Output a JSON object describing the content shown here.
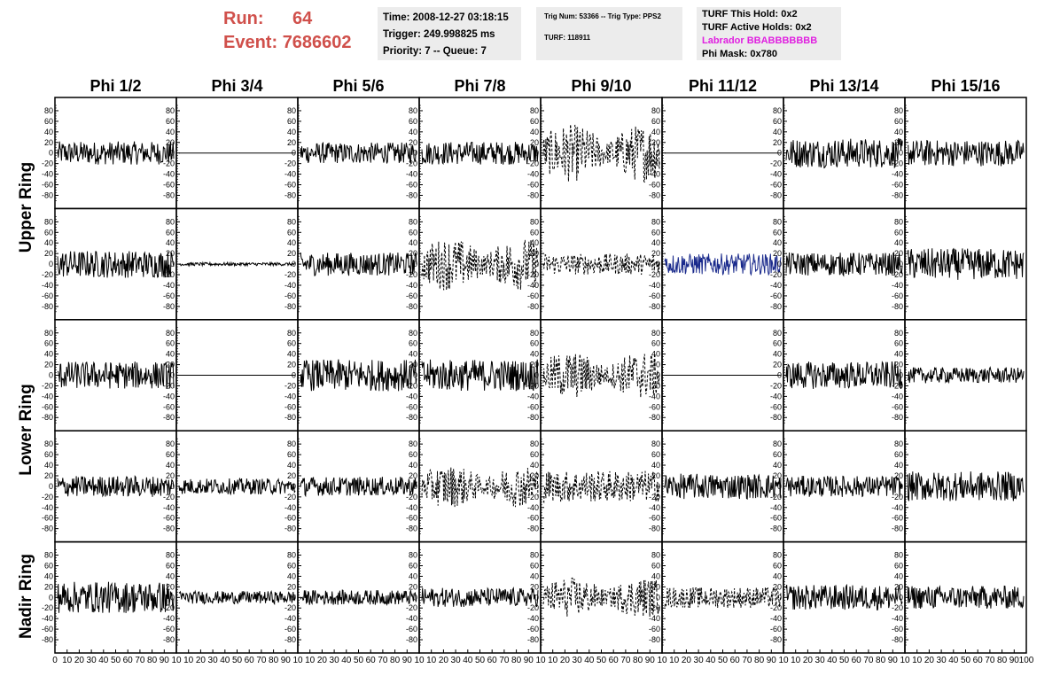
{
  "header": {
    "run_label": "Run:",
    "run_value": "64",
    "event_label": "Event:",
    "event_value": "7686602",
    "time": "Time: 2008-12-27 03:18:15",
    "trigger": "Trigger: 249.998825 ms",
    "priority": "Priority: 7 -- Queue: 7",
    "trig_num": "Trig Num: 53366 -- Trig Type: PPS2",
    "turf": "TURF: 118911",
    "turf_hold": "TURF This Hold: 0x2",
    "turf_active": "TURF Active Holds: 0x2",
    "labrador": "Labrador BBABBBBBBB",
    "phi_mask": "Phi Mask: 0x780"
  },
  "colors": {
    "run_text": "#d0504b",
    "labrador_text": "#e020e0",
    "info_bg": "#ececec",
    "trace_default": "#000000",
    "trace_blue": "#1a2a8c"
  },
  "chart_data": {
    "type": "line",
    "title": "",
    "columns": [
      "Phi 1/2",
      "Phi 3/4",
      "Phi 5/6",
      "Phi 7/8",
      "Phi 9/10",
      "Phi 11/12",
      "Phi 13/14",
      "Phi 15/16"
    ],
    "row_labels": [
      "Upper Ring",
      "Lower Ring",
      "Nadir Ring"
    ],
    "rows_per_panel": 5,
    "xlim": [
      0,
      100
    ],
    "ylim": [
      -95,
      95
    ],
    "y_ticks": [
      -80,
      -60,
      -40,
      -20,
      0,
      20,
      40,
      60,
      80
    ],
    "x_ticks": [
      0,
      10,
      20,
      30,
      40,
      50,
      60,
      70,
      80,
      90,
      100
    ],
    "x_tick_labels_first": [
      "0",
      "10",
      "20",
      "30",
      "40",
      "50",
      "60",
      "70",
      "80",
      "90",
      "10"
    ],
    "x_tick_labels_mid": [
      "10",
      "20",
      "30",
      "40",
      "50",
      "60",
      "70",
      "80",
      "90",
      "10"
    ],
    "x_tick_labels_last": [
      "10",
      "20",
      "30",
      "40",
      "50",
      "60",
      "70",
      "80",
      "90",
      "100"
    ],
    "panels": [
      [
        {
          "style": "noise",
          "amp": 22
        },
        {
          "style": "flat",
          "amp": 0
        },
        {
          "style": "noise",
          "amp": 20
        },
        {
          "style": "noise",
          "amp": 22
        },
        {
          "style": "burst",
          "amp": 55,
          "dashed": true
        },
        {
          "style": "flat",
          "amp": 0
        },
        {
          "style": "noise",
          "amp": 28
        },
        {
          "style": "noise",
          "amp": 25
        }
      ],
      [
        {
          "style": "noise",
          "amp": 26
        },
        {
          "style": "small",
          "amp": 3
        },
        {
          "style": "noise",
          "amp": 22
        },
        {
          "style": "burst",
          "amp": 50,
          "dashed": true
        },
        {
          "style": "noise",
          "amp": 20,
          "dashed": true
        },
        {
          "style": "noise",
          "amp": 20,
          "color": "blue"
        },
        {
          "style": "noise",
          "amp": 22
        },
        {
          "style": "noise",
          "amp": 30
        }
      ],
      [
        {
          "style": "noise",
          "amp": 26
        },
        {
          "style": "flat",
          "amp": 0
        },
        {
          "style": "noise",
          "amp": 30
        },
        {
          "style": "noise",
          "amp": 30
        },
        {
          "style": "burst",
          "amp": 45,
          "dashed": true
        },
        {
          "style": "flat",
          "amp": 0
        },
        {
          "style": "noise",
          "amp": 26
        },
        {
          "style": "noise",
          "amp": 15
        }
      ],
      [
        {
          "style": "noise",
          "amp": 20
        },
        {
          "style": "noise",
          "amp": 15
        },
        {
          "style": "noise",
          "amp": 18
        },
        {
          "style": "burst",
          "amp": 40,
          "dashed": true
        },
        {
          "style": "noise",
          "amp": 30,
          "dashed": true
        },
        {
          "style": "noise",
          "amp": 24
        },
        {
          "style": "noise",
          "amp": 20
        },
        {
          "style": "noise",
          "amp": 28
        }
      ],
      [
        {
          "style": "noise",
          "amp": 30
        },
        {
          "style": "noise",
          "amp": 12
        },
        {
          "style": "noise",
          "amp": 14
        },
        {
          "style": "noise",
          "amp": 18
        },
        {
          "style": "burst",
          "amp": 38,
          "dashed": true
        },
        {
          "style": "noise",
          "amp": 20,
          "dashed": true
        },
        {
          "style": "noise",
          "amp": 24
        },
        {
          "style": "noise",
          "amp": 22
        }
      ]
    ]
  }
}
